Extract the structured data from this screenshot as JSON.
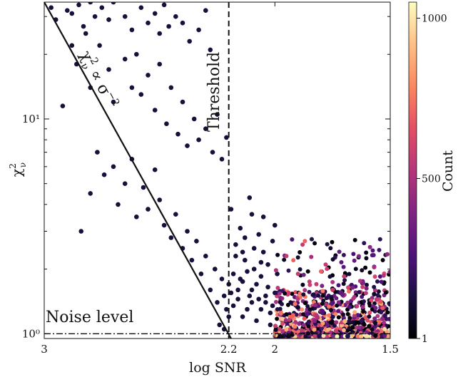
{
  "chart_data": {
    "type": "scatter",
    "title": "",
    "xlabel": "log SNR",
    "ylabel": "χ²_ν",
    "x_axis": {
      "reversed": true,
      "xlim": [
        3.0,
        1.5
      ],
      "ticks": [
        3.0,
        2.2,
        2.0,
        1.5
      ],
      "tick_labels": [
        "3",
        "2.2",
        "2",
        "1.5"
      ]
    },
    "y_axis": {
      "scale": "log",
      "ylim": [
        0.95,
        35.0
      ],
      "ticks": [
        1,
        10
      ],
      "tick_labels": [
        "10⁰",
        "10¹"
      ]
    },
    "grid": false,
    "colorbar": {
      "label": "Count",
      "range": [
        1,
        1050
      ],
      "ticks": [
        1,
        500,
        1000
      ],
      "tick_labels": [
        "1",
        "500",
        "1000"
      ],
      "colormap": "magma"
    },
    "annotations": [
      {
        "id": "threshold",
        "text": "Threshold",
        "x": 2.2,
        "style": "dashed-vertical"
      },
      {
        "id": "noise",
        "text": "Noise level",
        "y": 1.0,
        "style": "dashdot-horizontal"
      },
      {
        "id": "fit",
        "text": "χ²_ν ∝ σ⁻²",
        "from": [
          3.0,
          35.0
        ],
        "to": [
          2.19,
          0.95
        ],
        "style": "solid-line"
      }
    ],
    "points": [
      [
        2.97,
        33
      ],
      [
        2.95,
        29
      ],
      [
        2.9,
        32
      ],
      [
        2.88,
        31
      ],
      [
        2.85,
        34
      ],
      [
        2.83,
        27
      ],
      [
        2.8,
        35
      ],
      [
        2.78,
        30
      ],
      [
        2.75,
        33
      ],
      [
        2.72,
        29
      ],
      [
        2.7,
        35
      ],
      [
        2.65,
        30
      ],
      [
        2.62,
        26
      ],
      [
        2.58,
        33
      ],
      [
        2.55,
        28
      ],
      [
        2.52,
        31
      ],
      [
        2.5,
        25
      ],
      [
        2.48,
        34
      ],
      [
        2.46,
        27
      ],
      [
        2.43,
        30
      ],
      [
        2.4,
        28
      ],
      [
        2.37,
        23
      ],
      [
        2.33,
        26
      ],
      [
        2.3,
        32
      ],
      [
        2.28,
        21
      ],
      [
        2.92,
        11.5
      ],
      [
        2.88,
        22
      ],
      [
        2.86,
        18
      ],
      [
        2.82,
        25
      ],
      [
        2.8,
        14
      ],
      [
        2.76,
        22
      ],
      [
        2.72,
        17
      ],
      [
        2.7,
        12
      ],
      [
        2.65,
        19
      ],
      [
        2.62,
        14
      ],
      [
        2.6,
        20
      ],
      [
        2.58,
        13
      ],
      [
        2.55,
        16
      ],
      [
        2.52,
        11
      ],
      [
        2.5,
        18
      ],
      [
        2.47,
        9.5
      ],
      [
        2.45,
        14
      ],
      [
        2.42,
        8.5
      ],
      [
        2.4,
        12
      ],
      [
        2.38,
        7.5
      ],
      [
        2.35,
        10
      ],
      [
        2.33,
        8
      ],
      [
        2.3,
        9
      ],
      [
        2.27,
        7
      ],
      [
        2.25,
        10.5
      ],
      [
        2.23,
        6.5
      ],
      [
        2.21,
        8.2
      ],
      [
        2.84,
        3.0
      ],
      [
        2.8,
        4.5
      ],
      [
        2.77,
        7.0
      ],
      [
        2.74,
        5.5
      ],
      [
        2.7,
        6.0
      ],
      [
        2.68,
        4.0
      ],
      [
        2.65,
        5.0
      ],
      [
        2.62,
        6.5
      ],
      [
        2.6,
        3.5
      ],
      [
        2.57,
        4.8
      ],
      [
        2.55,
        3.8
      ],
      [
        2.52,
        5.8
      ],
      [
        2.5,
        4.2
      ],
      [
        2.48,
        3.2
      ],
      [
        2.45,
        2.8
      ],
      [
        2.43,
        3.6
      ],
      [
        2.4,
        2.5
      ],
      [
        2.38,
        3.0
      ],
      [
        2.36,
        2.2
      ],
      [
        2.34,
        2.7
      ],
      [
        2.32,
        1.9
      ],
      [
        2.3,
        2.3
      ],
      [
        2.28,
        1.6
      ],
      [
        2.26,
        2.0
      ],
      [
        2.25,
        1.4
      ],
      [
        2.23,
        1.8
      ],
      [
        2.22,
        1.5
      ],
      [
        2.21,
        1.3
      ],
      [
        2.2,
        1.7
      ],
      [
        2.2,
        1.2
      ],
      [
        2.24,
        1.1
      ],
      [
        2.22,
        1.05
      ],
      [
        2.19,
        3.8
      ],
      [
        2.18,
        1.9
      ],
      [
        2.17,
        2.6
      ],
      [
        2.16,
        1.45
      ],
      [
        2.15,
        3.1
      ],
      [
        2.14,
        1.75
      ],
      [
        2.13,
        2.2
      ],
      [
        2.12,
        1.3
      ],
      [
        2.11,
        4.3
      ],
      [
        2.1,
        1.6
      ],
      [
        2.09,
        2.5
      ],
      [
        2.08,
        1.15
      ],
      [
        2.07,
        2.9
      ],
      [
        2.06,
        1.85
      ],
      [
        2.05,
        3.5
      ],
      [
        2.04,
        1.4
      ],
      [
        2.03,
        2.1
      ],
      [
        2.02,
        1.25
      ],
      [
        2.01,
        2.7
      ],
      [
        2.0,
        1.55
      ],
      [
        2.0,
        3.2
      ],
      [
        1.99,
        1.9
      ],
      [
        2.18,
        1.35
      ],
      [
        2.16,
        1.6
      ],
      [
        2.14,
        1.2
      ],
      [
        2.12,
        1.95
      ],
      [
        2.1,
        1.4
      ],
      [
        2.08,
        1.7
      ],
      [
        2.06,
        1.3
      ],
      [
        2.04,
        1.5
      ],
      [
        2.02,
        1.1
      ],
      [
        2.17,
        2.3
      ],
      [
        2.13,
        2.8
      ],
      [
        2.09,
        2.0
      ],
      [
        2.05,
        2.4
      ],
      [
        2.03,
        1.65
      ],
      [
        2.19,
        1.55
      ],
      [
        2.15,
        1.8
      ],
      [
        2.11,
        1.5
      ],
      [
        2.07,
        1.45
      ],
      [
        2.01,
        1.35
      ],
      [
        2.06,
        2.15
      ],
      [
        2.1,
        3.6
      ],
      [
        2.14,
        2.4
      ]
    ],
    "dense_region": {
      "x_range": [
        2.0,
        1.5
      ],
      "y_range": [
        0.97,
        2.8
      ],
      "count_range": [
        1,
        1050
      ]
    }
  }
}
